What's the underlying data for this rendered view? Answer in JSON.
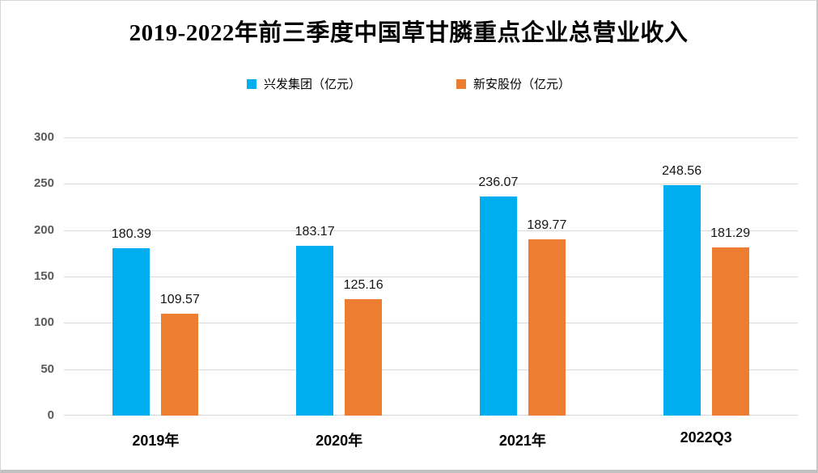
{
  "window": {
    "background": "#ffffff",
    "frame_border_color": "#d6d6d6"
  },
  "chart_data": {
    "type": "bar",
    "title": "2019-2022年前三季度中国草甘膦重点企业总营业收入",
    "categories": [
      "2019年",
      "2020年",
      "2021年",
      "2022Q3"
    ],
    "series": [
      {
        "name": "兴发集团（亿元）",
        "color": "#00AEEF",
        "values": [
          180.39,
          183.17,
          236.07,
          248.56
        ]
      },
      {
        "name": "新安股份（亿元）",
        "color": "#ED7D31",
        "values": [
          109.57,
          125.16,
          189.77,
          181.29
        ]
      }
    ],
    "data_labels": [
      [
        "180.39",
        "183.17",
        "236.07",
        "248.56"
      ],
      [
        "109.57",
        "125.16",
        "189.77",
        "181.29"
      ]
    ],
    "ylim": [
      0,
      300
    ],
    "yticks": [
      0,
      50,
      100,
      150,
      200,
      250,
      300
    ],
    "grid": "horizontal",
    "gridline_color": "#D9D9D9",
    "ytick_color": "#595959",
    "xtick_color": "#000000",
    "legend_position": "top"
  }
}
